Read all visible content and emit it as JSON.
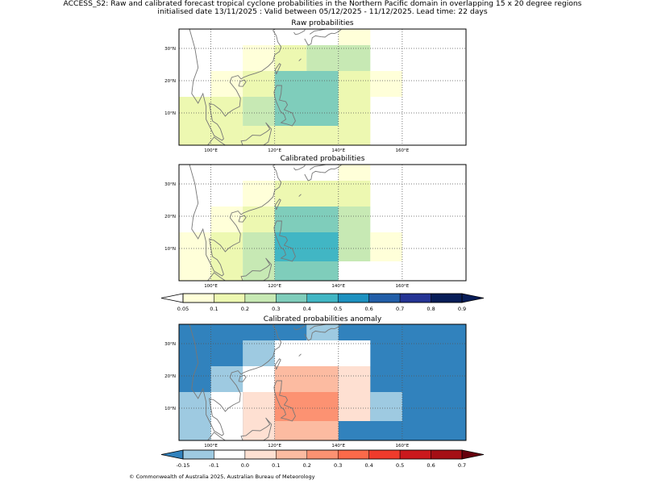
{
  "header": {
    "line1": "ACCESS_S2: Raw and calibrated forecast tropical cyclone probabilities in the Northern Pacific domain in overlapping 15 x 20 degree regions",
    "line2": "initialised date 13/11/2025 :  Valid between 05/12/2025 - 11/12/2025. Lead time: 22 days"
  },
  "footer": {
    "copyright": "© Commonwealth of Australia 2025, Australian Bureau of Meteorology"
  },
  "colors": {
    "land": "#777777",
    "grid": "#555555",
    "prob_bins": [
      "#ffffd9",
      "#edf8b1",
      "#c7e9b4",
      "#7fcdbb",
      "#41b6c4",
      "#1d91c0",
      "#225ea8",
      "#253494",
      "#081d58"
    ],
    "prob_under": "#ffffff",
    "prob_over": "#081d58",
    "anom_bins": [
      "#9ecae1",
      "#ffffff",
      "#fee0d2",
      "#fcbba1",
      "#fc9272",
      "#fb6a4a",
      "#ef3b2c",
      "#cb181d",
      "#a50f15"
    ],
    "anom_under": "#3182bd",
    "anom_over": "#67000d"
  },
  "chart_data": [
    {
      "type": "heatmap",
      "title": "Raw probabilities",
      "xlim": [
        90,
        180
      ],
      "ylim": [
        0,
        36
      ],
      "xticks": [
        100,
        120,
        140,
        160
      ],
      "xtick_labels": [
        "100°E",
        "120°E",
        "140°E",
        "160°E"
      ],
      "yticks": [
        10,
        20,
        30
      ],
      "ytick_labels": [
        "10°N",
        "20°N",
        "30°N"
      ],
      "cells": [
        {
          "lon": [
            90,
            110
          ],
          "lat": [
            0,
            15
          ],
          "value": 0.15
        },
        {
          "lon": [
            110,
            120
          ],
          "lat": [
            0,
            6
          ],
          "value": 0.15
        },
        {
          "lon": [
            110,
            120
          ],
          "lat": [
            6,
            15
          ],
          "value": 0.25
        },
        {
          "lon": [
            120,
            140
          ],
          "lat": [
            0,
            6
          ],
          "value": 0.15
        },
        {
          "lon": [
            120,
            140
          ],
          "lat": [
            6,
            23
          ],
          "value": 0.35
        },
        {
          "lon": [
            140,
            150
          ],
          "lat": [
            0,
            23
          ],
          "value": 0.15
        },
        {
          "lon": [
            100,
            110
          ],
          "lat": [
            15,
            23
          ],
          "value": 0.07
        },
        {
          "lon": [
            110,
            120
          ],
          "lat": [
            15,
            23
          ],
          "value": 0.15
        },
        {
          "lon": [
            150,
            160
          ],
          "lat": [
            15,
            23
          ],
          "value": 0.07
        },
        {
          "lon": [
            110,
            120
          ],
          "lat": [
            23,
            31
          ],
          "value": 0.07
        },
        {
          "lon": [
            120,
            130
          ],
          "lat": [
            23,
            31
          ],
          "value": 0.15
        },
        {
          "lon": [
            130,
            140
          ],
          "lat": [
            23,
            31
          ],
          "value": 0.25
        },
        {
          "lon": [
            140,
            150
          ],
          "lat": [
            23,
            31
          ],
          "value": 0.25
        },
        {
          "lon": [
            140,
            150
          ],
          "lat": [
            31,
            36
          ],
          "value": 0.07
        }
      ]
    },
    {
      "type": "heatmap",
      "title": "Calibrated probabilities",
      "xlim": [
        90,
        180
      ],
      "ylim": [
        0,
        36
      ],
      "xticks": [
        100,
        120,
        140,
        160
      ],
      "xtick_labels": [
        "100°E",
        "120°E",
        "140°E",
        "160°E"
      ],
      "yticks": [
        10,
        20,
        30
      ],
      "ytick_labels": [
        "10°N",
        "20°N",
        "30°N"
      ],
      "cells": [
        {
          "lon": [
            90,
            100
          ],
          "lat": [
            0,
            15
          ],
          "value": 0.07
        },
        {
          "lon": [
            100,
            110
          ],
          "lat": [
            0,
            15
          ],
          "value": 0.15
        },
        {
          "lon": [
            110,
            120
          ],
          "lat": [
            0,
            15
          ],
          "value": 0.25
        },
        {
          "lon": [
            120,
            140
          ],
          "lat": [
            0,
            6
          ],
          "value": 0.35
        },
        {
          "lon": [
            120,
            140
          ],
          "lat": [
            6,
            15
          ],
          "value": 0.45
        },
        {
          "lon": [
            140,
            150
          ],
          "lat": [
            6,
            15
          ],
          "value": 0.25
        },
        {
          "lon": [
            150,
            160
          ],
          "lat": [
            6,
            15
          ],
          "value": 0.07
        },
        {
          "lon": [
            100,
            110
          ],
          "lat": [
            15,
            23
          ],
          "value": 0.07
        },
        {
          "lon": [
            110,
            120
          ],
          "lat": [
            15,
            23
          ],
          "value": 0.15
        },
        {
          "lon": [
            120,
            140
          ],
          "lat": [
            15,
            23
          ],
          "value": 0.35
        },
        {
          "lon": [
            140,
            150
          ],
          "lat": [
            15,
            23
          ],
          "value": 0.25
        },
        {
          "lon": [
            110,
            120
          ],
          "lat": [
            23,
            31
          ],
          "value": 0.07
        },
        {
          "lon": [
            120,
            150
          ],
          "lat": [
            23,
            31
          ],
          "value": 0.15
        },
        {
          "lon": [
            140,
            150
          ],
          "lat": [
            31,
            36
          ],
          "value": 0.07
        }
      ]
    },
    {
      "type": "heatmap",
      "title": "Calibrated probabilities anomaly",
      "xlim": [
        90,
        180
      ],
      "ylim": [
        0,
        36
      ],
      "xticks": [
        100,
        120,
        140,
        160
      ],
      "xtick_labels": [
        "100°E",
        "120°E",
        "140°E",
        "160°E"
      ],
      "yticks": [
        10,
        20,
        30
      ],
      "ytick_labels": [
        "10°N",
        "20°N",
        "30°N"
      ],
      "background_value": -0.2,
      "cells": [
        {
          "lon": [
            90,
            100
          ],
          "lat": [
            0,
            15
          ],
          "value": -0.12
        },
        {
          "lon": [
            100,
            110
          ],
          "lat": [
            0,
            15
          ],
          "value": -0.02
        },
        {
          "lon": [
            110,
            120
          ],
          "lat": [
            0,
            15
          ],
          "value": 0.05
        },
        {
          "lon": [
            120,
            140
          ],
          "lat": [
            0,
            6
          ],
          "value": 0.15
        },
        {
          "lon": [
            120,
            140
          ],
          "lat": [
            6,
            15
          ],
          "value": 0.25
        },
        {
          "lon": [
            140,
            150
          ],
          "lat": [
            6,
            15
          ],
          "value": 0.05
        },
        {
          "lon": [
            150,
            160
          ],
          "lat": [
            6,
            15
          ],
          "value": -0.12
        },
        {
          "lon": [
            100,
            110
          ],
          "lat": [
            15,
            23
          ],
          "value": -0.12
        },
        {
          "lon": [
            110,
            120
          ],
          "lat": [
            15,
            23
          ],
          "value": -0.02
        },
        {
          "lon": [
            120,
            140
          ],
          "lat": [
            15,
            23
          ],
          "value": 0.15
        },
        {
          "lon": [
            140,
            150
          ],
          "lat": [
            15,
            23
          ],
          "value": 0.05
        },
        {
          "lon": [
            110,
            120
          ],
          "lat": [
            23,
            31
          ],
          "value": -0.12
        },
        {
          "lon": [
            120,
            150
          ],
          "lat": [
            23,
            31
          ],
          "value": -0.02
        },
        {
          "lon": [
            130,
            140
          ],
          "lat": [
            31,
            36
          ],
          "value": -0.12
        }
      ]
    }
  ],
  "colorbars": [
    {
      "name": "probability",
      "ticks": [
        0.05,
        0.1,
        0.2,
        0.3,
        0.4,
        0.5,
        0.6,
        0.7,
        0.8,
        0.9
      ],
      "labels": [
        "0.05",
        "0.1",
        "0.2",
        "0.3",
        "0.4",
        "0.5",
        "0.6",
        "0.7",
        "0.8",
        "0.9"
      ],
      "extend": "both"
    },
    {
      "name": "anomaly",
      "ticks": [
        -0.15,
        -0.1,
        0.0,
        0.1,
        0.2,
        0.3,
        0.4,
        0.5,
        0.6,
        0.7
      ],
      "labels": [
        "-0.15",
        "-0.1",
        "0.0",
        "0.1",
        "0.2",
        "0.3",
        "0.4",
        "0.5",
        "0.6",
        "0.7"
      ],
      "extend": "both"
    }
  ]
}
